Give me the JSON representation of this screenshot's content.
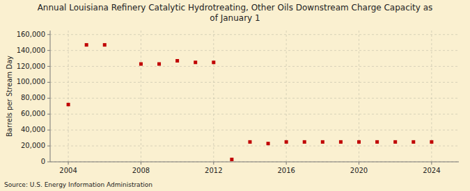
{
  "chart_data": {
    "type": "scatter",
    "title": "Annual Louisiana Refinery Catalytic Hydrotreating, Other Oils Downstream Charge Capacity as\nof January 1",
    "ylabel": "Barrels per Stream Day",
    "source": "Source: U.S. Energy Information Administration",
    "x": [
      2004,
      2005,
      2006,
      2008,
      2009,
      2010,
      2011,
      2012,
      2013,
      2014,
      2015,
      2016,
      2017,
      2018,
      2019,
      2020,
      2021,
      2022,
      2023,
      2024
    ],
    "values": [
      72000,
      147000,
      147000,
      123000,
      123000,
      127000,
      125000,
      125000,
      3000,
      25000,
      23000,
      25000,
      25000,
      25000,
      25000,
      25000,
      25000,
      25000,
      25000,
      25000
    ],
    "color": "#c00000",
    "marker": "square",
    "xlim": [
      2003.0,
      2025.5
    ],
    "ylim": [
      0,
      165000
    ],
    "xticks": [
      2004,
      2008,
      2012,
      2016,
      2020,
      2024
    ],
    "yticks": [
      0,
      {
        "value": 20000,
        "label": "20,000"
      },
      {
        "value": 40000,
        "label": "40,000"
      },
      {
        "value": 60000,
        "label": "60,000"
      },
      {
        "value": 80000,
        "label": "80,000"
      },
      {
        "value": 100000,
        "label": "100,000"
      },
      {
        "value": 120000,
        "label": "120,000"
      },
      {
        "value": 140000,
        "label": "140,000"
      },
      {
        "value": 160000,
        "label": "160,000"
      }
    ],
    "grid": true
  }
}
